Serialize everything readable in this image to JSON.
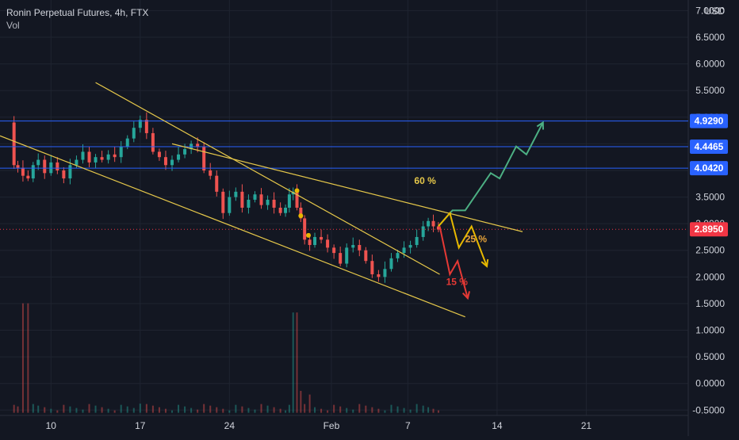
{
  "legend": {
    "title": "Ronin Perpetual Futures, 4h, FTX",
    "volume_label": "Vol"
  },
  "colors": {
    "background": "#131722",
    "grid": "#1f2430",
    "candle_up": "#26a69a",
    "candle_down": "#ef5350",
    "hline": "#2962ff",
    "trendline": "#e6c84a",
    "current_price": "#f23645",
    "arrow_green": "#4caf83",
    "arrow_yellow": "#e6b800",
    "arrow_red": "#e53935"
  },
  "chart_data": {
    "type": "candlestick",
    "title": "Ronin Perpetual Futures, 4h, FTX",
    "currency": "USD",
    "x_ticks": [
      {
        "label": "10",
        "day": 10
      },
      {
        "label": "17",
        "day": 17
      },
      {
        "label": "24",
        "day": 24
      },
      {
        "label": "Feb",
        "day": 32
      },
      {
        "label": "7",
        "day": 38
      },
      {
        "label": "14",
        "day": 45
      },
      {
        "label": "21",
        "day": 52
      }
    ],
    "y_ticks": [
      "7.0000",
      "6.5000",
      "6.0000",
      "5.5000",
      "5.0000",
      "4.5000",
      "4.0000",
      "3.5000",
      "3.0000",
      "2.5000",
      "2.0000",
      "1.5000",
      "1.0000",
      "0.5000",
      "0.0000",
      "-0.5000"
    ],
    "ylim": [
      -0.6,
      7.2
    ],
    "xlim": [
      6.0,
      60.0
    ],
    "close_path": [
      [
        6.9,
        4.9
      ],
      [
        7.1,
        4.1
      ],
      [
        7.4,
        4.05
      ],
      [
        7.8,
        3.9
      ],
      [
        8.2,
        3.85
      ],
      [
        8.6,
        4.1
      ],
      [
        9.0,
        4.2
      ],
      [
        9.5,
        3.95
      ],
      [
        10.0,
        4.15
      ],
      [
        10.5,
        4.0
      ],
      [
        11.0,
        3.85
      ],
      [
        11.5,
        4.1
      ],
      [
        12.0,
        4.2
      ],
      [
        12.5,
        4.35
      ],
      [
        13.0,
        4.15
      ],
      [
        13.5,
        4.25
      ],
      [
        14.0,
        4.2
      ],
      [
        14.5,
        4.3
      ],
      [
        15.0,
        4.25
      ],
      [
        15.5,
        4.45
      ],
      [
        16.0,
        4.6
      ],
      [
        16.5,
        4.8
      ],
      [
        17.0,
        4.95
      ],
      [
        17.5,
        4.7
      ],
      [
        18.0,
        4.35
      ],
      [
        18.5,
        4.25
      ],
      [
        19.0,
        4.1
      ],
      [
        19.5,
        4.2
      ],
      [
        20.0,
        4.3
      ],
      [
        20.5,
        4.4
      ],
      [
        21.0,
        4.5
      ],
      [
        21.5,
        4.45
      ],
      [
        22.0,
        4.0
      ],
      [
        22.5,
        3.9
      ],
      [
        23.0,
        3.6
      ],
      [
        23.5,
        3.2
      ],
      [
        24.0,
        3.5
      ],
      [
        24.5,
        3.6
      ],
      [
        25.0,
        3.3
      ],
      [
        25.5,
        3.45
      ],
      [
        26.0,
        3.55
      ],
      [
        26.5,
        3.35
      ],
      [
        27.0,
        3.45
      ],
      [
        27.5,
        3.3
      ],
      [
        28.0,
        3.2
      ],
      [
        28.4,
        3.3
      ],
      [
        28.7,
        3.55
      ],
      [
        29.0,
        3.6
      ],
      [
        29.3,
        3.3
      ],
      [
        29.6,
        3.1
      ],
      [
        29.9,
        2.7
      ],
      [
        30.3,
        2.6
      ],
      [
        30.7,
        2.75
      ],
      [
        31.2,
        2.7
      ],
      [
        31.7,
        2.55
      ],
      [
        32.2,
        2.45
      ],
      [
        32.7,
        2.25
      ],
      [
        33.2,
        2.55
      ],
      [
        33.7,
        2.6
      ],
      [
        34.2,
        2.5
      ],
      [
        34.7,
        2.3
      ],
      [
        35.2,
        2.05
      ],
      [
        35.7,
        2.0
      ],
      [
        36.2,
        2.15
      ],
      [
        36.7,
        2.35
      ],
      [
        37.2,
        2.45
      ],
      [
        37.7,
        2.55
      ],
      [
        38.2,
        2.6
      ],
      [
        38.7,
        2.75
      ],
      [
        39.2,
        2.95
      ],
      [
        39.6,
        3.05
      ],
      [
        40.0,
        2.95
      ],
      [
        40.4,
        2.89
      ]
    ],
    "horizontal_levels": [
      {
        "value": 4.929,
        "label": "4.9290"
      },
      {
        "value": 4.4465,
        "label": "4.4465"
      },
      {
        "value": 4.042,
        "label": "4.0420"
      }
    ],
    "current_price": {
      "value": 2.895,
      "label": "2.8950"
    },
    "trendlines": [
      {
        "from": [
          6.0,
          4.65
        ],
        "to": [
          42.5,
          1.25
        ]
      },
      {
        "from": [
          13.5,
          5.65
        ],
        "to": [
          40.5,
          2.05
        ]
      },
      {
        "from": [
          19.5,
          4.5
        ],
        "to": [
          47.0,
          2.85
        ]
      }
    ],
    "volume_spikes": [
      {
        "x": 8.0,
        "v": 0.6
      },
      {
        "x": 8.2,
        "v": 0.2
      },
      {
        "x": 17.0,
        "v": 0.05
      },
      {
        "x": 29.2,
        "v": 0.55
      },
      {
        "x": 29.6,
        "v": 0.12
      },
      {
        "x": 30.4,
        "v": 0.1
      }
    ],
    "annotations": [
      {
        "text": "60 %",
        "x": 38.5,
        "y": 3.75,
        "color": "#e6c84a"
      },
      {
        "text": "25 %",
        "x": 42.5,
        "y": 2.65,
        "color": "#e6a33a"
      },
      {
        "text": "15 %",
        "x": 41.0,
        "y": 1.85,
        "color": "#e53935"
      }
    ]
  }
}
